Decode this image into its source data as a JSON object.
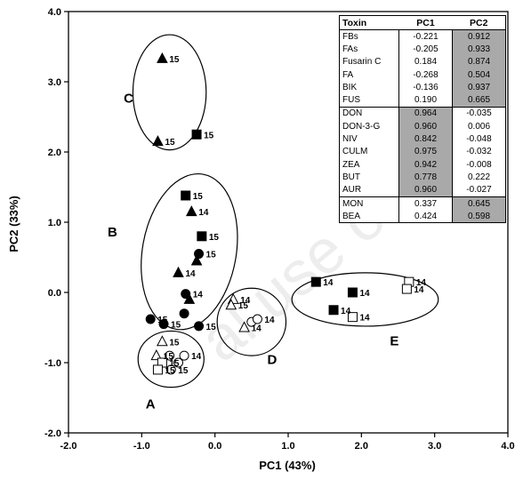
{
  "watermark": "al use only",
  "chart_data": {
    "type": "scatter",
    "xlabel": "PC1 (43%)",
    "ylabel": "PC2 (33%)",
    "xlim": [
      -2.0,
      4.0
    ],
    "ylim": [
      -2.0,
      4.0
    ],
    "xticks": [
      "-2.0",
      "-1.0",
      "0.0",
      "1.0",
      "2.0",
      "3.0",
      "4.0"
    ],
    "yticks": [
      "-2.0",
      "-1.0",
      "0.0",
      "1.0",
      "2.0",
      "3.0",
      "4.0"
    ],
    "grid": false,
    "points": [
      {
        "x": -0.72,
        "y": 3.33,
        "marker": "filled-triangle",
        "label": "15"
      },
      {
        "x": -0.78,
        "y": 2.15,
        "marker": "filled-triangle",
        "label": "15"
      },
      {
        "x": -0.25,
        "y": 2.25,
        "marker": "filled-square",
        "label": "15"
      },
      {
        "x": -0.4,
        "y": 1.38,
        "marker": "filled-square",
        "label": "15"
      },
      {
        "x": -0.32,
        "y": 1.15,
        "marker": "filled-triangle",
        "label": "14"
      },
      {
        "x": -0.18,
        "y": 0.8,
        "marker": "filled-square",
        "label": "15"
      },
      {
        "x": -0.22,
        "y": 0.55,
        "marker": "filled-circle",
        "label": "15"
      },
      {
        "x": -0.25,
        "y": 0.45,
        "marker": "filled-triangle",
        "label": ""
      },
      {
        "x": -0.5,
        "y": 0.28,
        "marker": "filled-triangle",
        "label": "14"
      },
      {
        "x": -0.4,
        "y": -0.02,
        "marker": "filled-circle",
        "label": "14"
      },
      {
        "x": -0.35,
        "y": -0.1,
        "marker": "filled-triangle",
        "label": ""
      },
      {
        "x": -0.7,
        "y": -0.45,
        "marker": "filled-circle",
        "label": "15"
      },
      {
        "x": -0.88,
        "y": -0.38,
        "marker": "filled-circle",
        "label": "15"
      },
      {
        "x": -0.22,
        "y": -0.48,
        "marker": "filled-circle",
        "label": "15"
      },
      {
        "x": -0.42,
        "y": -0.3,
        "marker": "filled-circle",
        "label": ""
      },
      {
        "x": -0.72,
        "y": -0.7,
        "marker": "open-triangle",
        "label": "15"
      },
      {
        "x": -0.8,
        "y": -0.9,
        "marker": "open-triangle",
        "label": "15"
      },
      {
        "x": -0.62,
        "y": -0.9,
        "marker": "open-circle",
        "label": ""
      },
      {
        "x": -0.42,
        "y": -0.9,
        "marker": "open-circle",
        "label": "14"
      },
      {
        "x": -0.72,
        "y": -1.0,
        "marker": "open-square",
        "label": "15"
      },
      {
        "x": -0.78,
        "y": -1.1,
        "marker": "open-square",
        "label": "15"
      },
      {
        "x": -0.6,
        "y": -1.1,
        "marker": "open-circle",
        "label": "15"
      },
      {
        "x": -0.5,
        "y": -1.0,
        "marker": "open-circle",
        "label": ""
      },
      {
        "x": 0.25,
        "y": -0.1,
        "marker": "open-triangle",
        "label": "14"
      },
      {
        "x": 0.22,
        "y": -0.18,
        "marker": "open-triangle",
        "label": "15"
      },
      {
        "x": 0.4,
        "y": -0.5,
        "marker": "open-triangle",
        "label": "14"
      },
      {
        "x": 0.5,
        "y": -0.42,
        "marker": "open-circle",
        "label": ""
      },
      {
        "x": 0.58,
        "y": -0.38,
        "marker": "open-circle",
        "label": "14"
      },
      {
        "x": 1.38,
        "y": 0.15,
        "marker": "filled-square",
        "label": "14"
      },
      {
        "x": 1.88,
        "y": 0.0,
        "marker": "filled-square",
        "label": "14"
      },
      {
        "x": 1.62,
        "y": -0.25,
        "marker": "filled-square",
        "label": "14"
      },
      {
        "x": 1.88,
        "y": -0.35,
        "marker": "open-square",
        "label": "14"
      },
      {
        "x": 2.65,
        "y": 0.15,
        "marker": "open-square",
        "label": "14"
      },
      {
        "x": 2.62,
        "y": 0.05,
        "marker": "open-square",
        "label": "14"
      }
    ],
    "groups": [
      {
        "name": "A",
        "cx": -0.6,
        "cy": -0.95,
        "rx": 0.45,
        "ry": 0.4,
        "label_x": -0.88,
        "label_y": -1.65
      },
      {
        "name": "B",
        "cx": -0.35,
        "cy": 0.58,
        "rx": 0.64,
        "ry": 1.12,
        "angle": 10,
        "label_x": -1.4,
        "label_y": 0.8
      },
      {
        "name": "C",
        "cx": -0.62,
        "cy": 2.85,
        "rx": 0.5,
        "ry": 0.82,
        "label_x": -1.18,
        "label_y": 2.7
      },
      {
        "name": "D",
        "cx": 0.5,
        "cy": -0.42,
        "rx": 0.47,
        "ry": 0.48,
        "label_x": 0.78,
        "label_y": -1.02
      },
      {
        "name": "E",
        "cx": 2.05,
        "cy": -0.1,
        "rx": 1.0,
        "ry": 0.38,
        "label_x": 2.45,
        "label_y": -0.75
      }
    ],
    "loadings_table": {
      "headers": [
        "Toxin",
        "PC1",
        "PC2"
      ],
      "rows": [
        {
          "toxin": "FBs",
          "pc1": "-0.221",
          "pc2": "0.912",
          "hl": "pc2",
          "sep": false
        },
        {
          "toxin": "FAs",
          "pc1": "-0.205",
          "pc2": "0.933",
          "hl": "pc2",
          "sep": false
        },
        {
          "toxin": "Fusarin C",
          "pc1": "0.184",
          "pc2": "0.874",
          "hl": "pc2",
          "sep": false
        },
        {
          "toxin": "FA",
          "pc1": "-0.268",
          "pc2": "0.504",
          "hl": "pc2",
          "sep": false
        },
        {
          "toxin": "BIK",
          "pc1": "-0.136",
          "pc2": "0.937",
          "hl": "pc2",
          "sep": false
        },
        {
          "toxin": "FUS",
          "pc1": "0.190",
          "pc2": "0.665",
          "hl": "pc2",
          "sep": false
        },
        {
          "toxin": "DON",
          "pc1": "0.964",
          "pc2": "-0.035",
          "hl": "pc1",
          "sep": true
        },
        {
          "toxin": "DON-3-G",
          "pc1": "0.960",
          "pc2": "0.006",
          "hl": "pc1",
          "sep": false
        },
        {
          "toxin": "NIV",
          "pc1": "0.842",
          "pc2": "-0.048",
          "hl": "pc1",
          "sep": false
        },
        {
          "toxin": "CULM",
          "pc1": "0.975",
          "pc2": "-0.032",
          "hl": "pc1",
          "sep": false
        },
        {
          "toxin": "ZEA",
          "pc1": "0.942",
          "pc2": "-0.008",
          "hl": "pc1",
          "sep": false
        },
        {
          "toxin": "BUT",
          "pc1": "0.778",
          "pc2": "0.222",
          "hl": "pc1",
          "sep": false
        },
        {
          "toxin": "AUR",
          "pc1": "0.960",
          "pc2": "-0.027",
          "hl": "pc1",
          "sep": false
        },
        {
          "toxin": "MON",
          "pc1": "0.337",
          "pc2": "0.645",
          "hl": "pc2",
          "sep": true
        },
        {
          "toxin": "BEA",
          "pc1": "0.424",
          "pc2": "0.598",
          "hl": "pc2",
          "sep": false
        }
      ]
    }
  }
}
